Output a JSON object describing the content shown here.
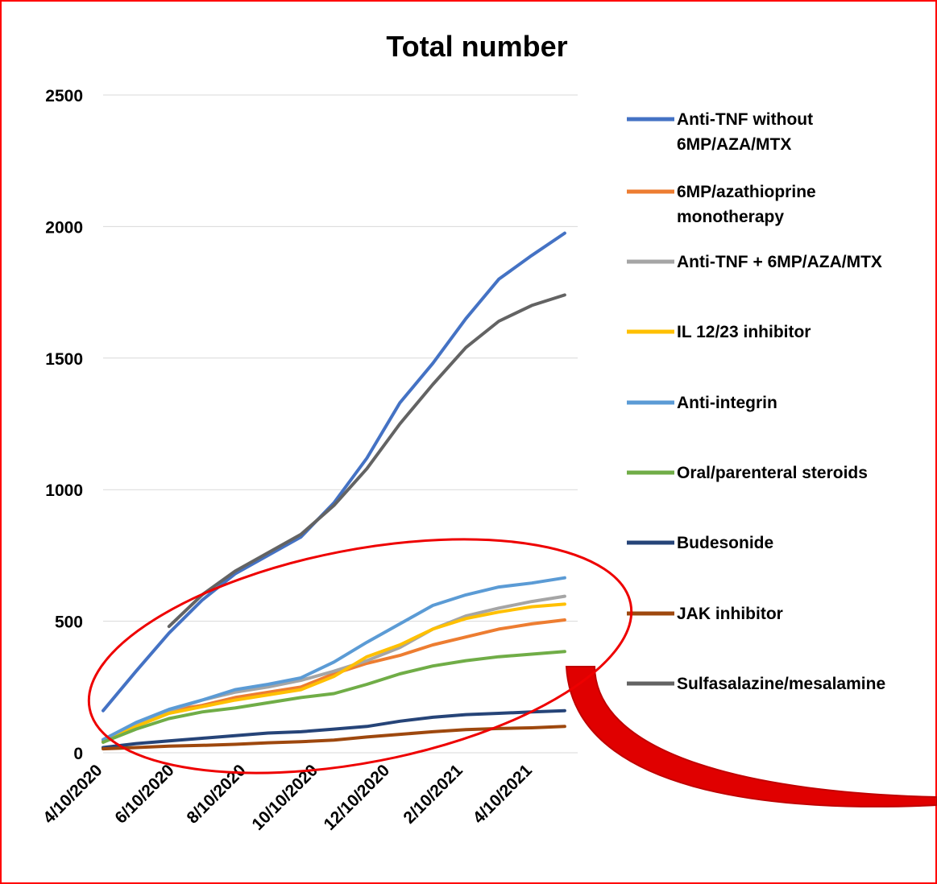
{
  "chart_data": {
    "type": "line",
    "title": "Total number",
    "xlabel": "",
    "ylabel": "",
    "x_tick_labels": [
      "4/10/2020",
      "6/10/2020",
      "8/10/2020",
      "10/10/2020",
      "12/10/2020",
      "2/10/2021",
      "4/10/2021"
    ],
    "x_dates": [
      "2020-04-10",
      "2020-05-08",
      "2020-06-05",
      "2020-07-03",
      "2020-07-31",
      "2020-08-28",
      "2020-09-25",
      "2020-10-23",
      "2020-11-20",
      "2020-12-18",
      "2021-01-15",
      "2021-02-12",
      "2021-03-12",
      "2021-04-09",
      "2021-05-07"
    ],
    "ylim": [
      0,
      2500
    ],
    "y_ticks": [
      0,
      500,
      1000,
      1500,
      2000,
      2500
    ],
    "grid": "horizontal",
    "legend_position": "right",
    "series": [
      {
        "name": "Anti-TNF without 6MP/AZA/MTX",
        "color": "#4472C4",
        "values": [
          160,
          310,
          455,
          580,
          680,
          750,
          820,
          950,
          1120,
          1330,
          1480,
          1650,
          1800,
          1890,
          1975
        ]
      },
      {
        "name": "6MP/azathioprine monotherapy",
        "color": "#ED7D31",
        "values": [
          45,
          105,
          160,
          180,
          210,
          230,
          250,
          300,
          340,
          370,
          410,
          440,
          470,
          490,
          505
        ]
      },
      {
        "name": "Anti-TNF + 6MP/AZA/MTX",
        "color": "#A5A5A5",
        "values": [
          50,
          110,
          160,
          200,
          230,
          250,
          275,
          310,
          350,
          400,
          470,
          520,
          550,
          575,
          595
        ]
      },
      {
        "name": "IL 12/23 inhibitor",
        "color": "#FFC000",
        "values": [
          40,
          100,
          150,
          175,
          200,
          220,
          240,
          290,
          365,
          410,
          470,
          510,
          535,
          555,
          565
        ]
      },
      {
        "name": "Anti-integrin",
        "color": "#5B9BD5",
        "values": [
          50,
          115,
          165,
          200,
          240,
          260,
          285,
          345,
          420,
          490,
          560,
          600,
          630,
          645,
          665
        ]
      },
      {
        "name": "Oral/parenteral steroids",
        "color": "#70AD47",
        "values": [
          40,
          90,
          130,
          155,
          170,
          190,
          210,
          225,
          260,
          300,
          330,
          350,
          365,
          375,
          385
        ]
      },
      {
        "name": "Budesonide",
        "color": "#264478",
        "values": [
          20,
          35,
          45,
          55,
          65,
          75,
          80,
          90,
          100,
          120,
          135,
          145,
          150,
          155,
          160
        ]
      },
      {
        "name": "JAK inhibitor",
        "color": "#9E480E",
        "values": [
          15,
          20,
          25,
          28,
          32,
          38,
          42,
          48,
          60,
          70,
          80,
          88,
          92,
          95,
          100
        ]
      },
      {
        "name": "Sulfasalazine/mesalamine",
        "color": "#636363",
        "values": [
          null,
          null,
          480,
          600,
          690,
          760,
          830,
          940,
          1080,
          1250,
          1400,
          1540,
          1640,
          1700,
          1740
        ]
      }
    ]
  }
}
